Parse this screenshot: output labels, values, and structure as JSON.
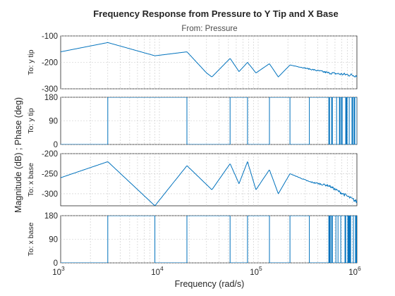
{
  "chart_data": {
    "type": "line",
    "title": "Frequency Response from Pressure to Y Tip and X Base",
    "subtitle": "From: Pressure",
    "xlabel": "Frequency  (rad/s)",
    "ylabel": "Magnitude (dB) ; Phase (deg)",
    "xscale": "log",
    "xlim": [
      1000,
      1000000
    ],
    "grid": true,
    "x_ticks": [
      {
        "base": "10",
        "exp": "3"
      },
      {
        "base": "10",
        "exp": "4"
      },
      {
        "base": "10",
        "exp": "5"
      },
      {
        "base": "10",
        "exp": "6"
      }
    ],
    "resonances": [
      3000,
      19000,
      52000,
      78000,
      130000,
      210000,
      330000,
      520000,
      780000
    ],
    "antiresonances": [
      9000,
      34000,
      64000,
      95000,
      160000,
      260000,
      410000,
      640000,
      900000
    ],
    "panels": [
      {
        "row_label": "To: y tip",
        "quantity": "magnitude",
        "unit": "dB",
        "ylim": [
          -300,
          -100
        ],
        "yticks": [
          "-100",
          "-200",
          "-300"
        ],
        "x": [
          1000,
          3000,
          9000,
          19000,
          30000,
          34000,
          52000,
          64000,
          78000,
          95000,
          130000,
          160000,
          210000,
          330000,
          520000,
          1000000
        ],
        "values": [
          -160,
          -125,
          -175,
          -160,
          -240,
          -255,
          -185,
          -235,
          -200,
          -240,
          -205,
          -255,
          -210,
          -225,
          -240,
          -250
        ]
      },
      {
        "row_label": "To: y tip",
        "quantity": "phase",
        "unit": "deg",
        "ylim": [
          0,
          180
        ],
        "yticks": [
          "180",
          "90",
          "0"
        ],
        "x": [
          1000,
          3000,
          19000,
          52000,
          78000,
          130000,
          210000,
          330000,
          520000,
          1000000
        ],
        "values": [
          0,
          180,
          0,
          180,
          0,
          180,
          0,
          180,
          0,
          180
        ]
      },
      {
        "row_label": "To: x base",
        "quantity": "magnitude",
        "unit": "dB",
        "ylim": [
          -330,
          -200
        ],
        "yticks": [
          "-200",
          "-250",
          "-300"
        ],
        "x": [
          1000,
          3000,
          9000,
          19000,
          34000,
          52000,
          64000,
          78000,
          95000,
          130000,
          160000,
          210000,
          330000,
          520000,
          1000000
        ],
        "values": [
          -260,
          -220,
          -330,
          -230,
          -290,
          -225,
          -275,
          -220,
          -290,
          -240,
          -300,
          -250,
          -270,
          -280,
          -320
        ]
      },
      {
        "row_label": "To: x base",
        "quantity": "phase",
        "unit": "deg",
        "ylim": [
          0,
          180
        ],
        "yticks": [
          "180",
          "90",
          "0"
        ],
        "x": [
          1000,
          3000,
          9000,
          19000,
          52000,
          78000,
          130000,
          210000,
          330000,
          520000,
          1000000
        ],
        "values": [
          0,
          180,
          0,
          180,
          0,
          180,
          0,
          180,
          0,
          180,
          0
        ]
      }
    ]
  }
}
